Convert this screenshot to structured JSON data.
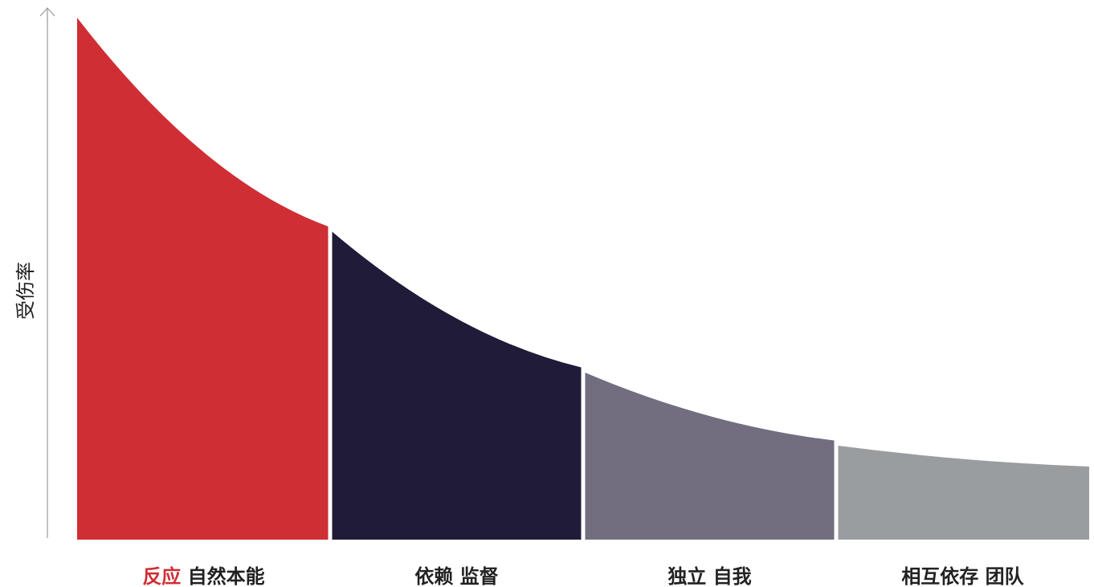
{
  "chart_data": {
    "type": "area",
    "title": "",
    "xlabel": "",
    "ylabel": "受伤率",
    "grid": false,
    "legend": "none",
    "colors": [
      "#cf2e34",
      "#1f1b38",
      "#726e80",
      "#9a9d9f"
    ],
    "stages": [
      {
        "emphasis": "反应",
        "label": "自然本能",
        "y_start": 100,
        "y_end": 60
      },
      {
        "emphasis": "",
        "label": "依赖 监督",
        "y_start": 59,
        "y_end": 33
      },
      {
        "emphasis": "",
        "label": "独立 自我",
        "y_start": 32,
        "y_end": 19
      },
      {
        "emphasis": "",
        "label": "相互依存 团队",
        "y_start": 18,
        "y_end": 14
      }
    ]
  }
}
